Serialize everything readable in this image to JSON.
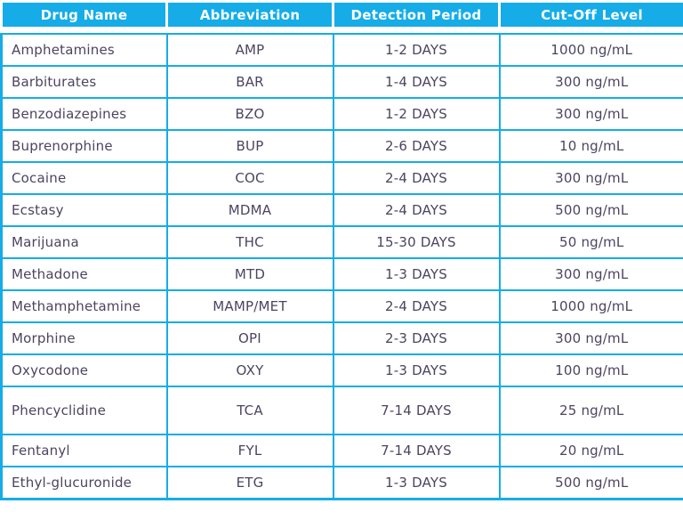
{
  "chart_data": {
    "type": "table",
    "columns": [
      "Drug Name",
      "Abbreviation",
      "Detection Period",
      "Cut-Off Level"
    ],
    "rows": [
      [
        "Amphetamines",
        "AMP",
        "1-2 DAYS",
        "1000 ng/mL"
      ],
      [
        "Barbiturates",
        "BAR",
        "1-4 DAYS",
        "300 ng/mL"
      ],
      [
        "Benzodiazepines",
        "BZO",
        "1-2 DAYS",
        "300 ng/mL"
      ],
      [
        "Buprenorphine",
        "BUP",
        "2-6 DAYS",
        "10 ng/mL"
      ],
      [
        "Cocaine",
        "COC",
        "2-4 DAYS",
        "300 ng/mL"
      ],
      [
        "Ecstasy",
        "MDMA",
        "2-4 DAYS",
        "500 ng/mL"
      ],
      [
        "Marijuana",
        "THC",
        "15-30 DAYS",
        "50 ng/mL"
      ],
      [
        "Methadone",
        "MTD",
        "1-3 DAYS",
        "300 ng/mL"
      ],
      [
        "Methamphetamine",
        "MAMP/MET",
        "2-4 DAYS",
        "1000 ng/mL"
      ],
      [
        "Morphine",
        "OPI",
        "2-3 DAYS",
        "300 ng/mL"
      ],
      [
        "Oxycodone",
        "OXY",
        "1-3 DAYS",
        "100 ng/mL"
      ],
      [
        "Phencyclidine",
        "TCA",
        "7-14 DAYS",
        "25 ng/mL"
      ],
      [
        "Fentanyl",
        "FYL",
        "7-14 DAYS",
        "20 ng/mL"
      ],
      [
        "Ethyl-glucuronide",
        "ETG",
        "1-3 DAYS",
        "500 ng/mL"
      ]
    ],
    "layout": {
      "grid": "on",
      "header_position": "top"
    }
  },
  "colors": {
    "header_bg": "#15ACE8",
    "header_text": "#FFFFFF",
    "border": "#15ACE8",
    "cell_text": "#4D4460"
  }
}
